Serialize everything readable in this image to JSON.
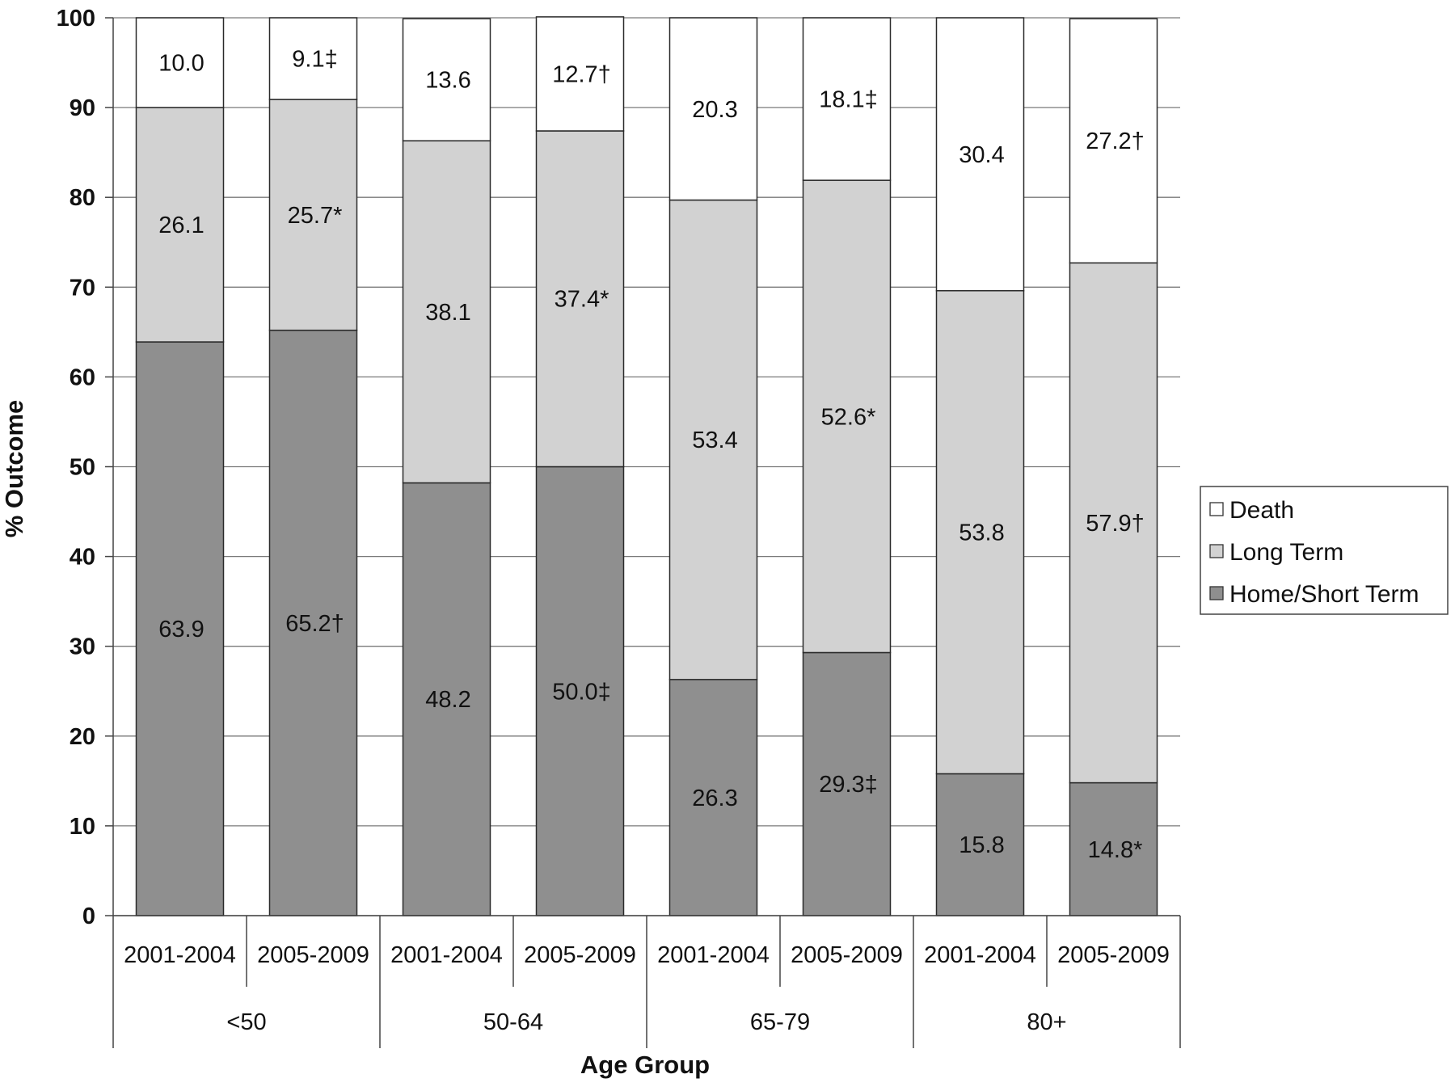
{
  "chart_data": {
    "type": "bar",
    "stacked": true,
    "ylabel": "% Outcome",
    "xlabel": "Age Group",
    "ylim": [
      0,
      100
    ],
    "yticks": [
      0,
      10,
      20,
      30,
      40,
      50,
      60,
      70,
      80,
      90,
      100
    ],
    "grid": true,
    "legend_position": "right",
    "groups": [
      "<50",
      "50-64",
      "65-79",
      "80+"
    ],
    "periods": [
      "2001-2004",
      "2005-2009"
    ],
    "categories": [
      "2001-2004",
      "2005-2009",
      "2001-2004",
      "2005-2009",
      "2001-2004",
      "2005-2009",
      "2001-2004",
      "2005-2009"
    ],
    "series": [
      {
        "name": "Home/Short Term",
        "color": "#8f8f8f",
        "values": [
          63.9,
          65.2,
          48.2,
          50.0,
          26.3,
          29.3,
          15.8,
          14.8
        ],
        "labels": [
          "63.9",
          "65.2†",
          "48.2",
          "50.0‡",
          "26.3",
          "29.3‡",
          "15.8",
          "14.8*"
        ]
      },
      {
        "name": "Long Term",
        "color": "#d2d2d2",
        "values": [
          26.1,
          25.7,
          38.1,
          37.4,
          53.4,
          52.6,
          53.8,
          57.9
        ],
        "labels": [
          "26.1",
          "25.7*",
          "38.1",
          "37.4*",
          "53.4",
          "52.6*",
          "53.8",
          "57.9†"
        ]
      },
      {
        "name": "Death",
        "color": "#ffffff",
        "values": [
          10.0,
          9.1,
          13.6,
          12.7,
          20.3,
          18.1,
          30.4,
          27.2
        ],
        "labels": [
          "10.0",
          "9.1‡",
          "13.6",
          "12.7†",
          "20.3",
          "18.1‡",
          "30.4",
          "27.2†"
        ]
      }
    ],
    "legend_order": [
      "Death",
      "Long Term",
      "Home/Short Term"
    ]
  }
}
